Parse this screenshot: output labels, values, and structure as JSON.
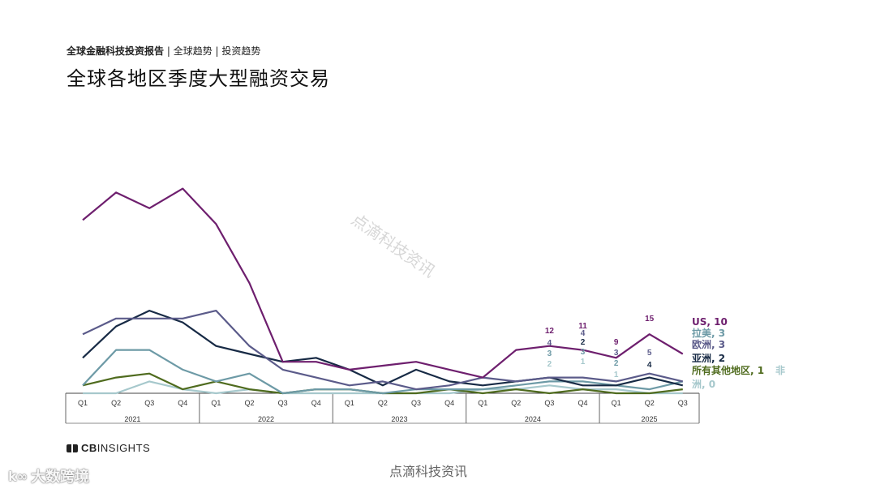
{
  "header": {
    "breadcrumb_bold": "全球金融科技投资报告",
    "breadcrumb_rest": " | 全球趋势 | 投资趋势",
    "title": "全球各地区季度大型融资交易"
  },
  "logo": {
    "brand_bold": "CB",
    "brand_rest": "INSIGHTS"
  },
  "watermarks": {
    "bottom": "点滴科技资讯",
    "diagonal": "点滴科技资讯",
    "corner": "大数跨境",
    "corner_icon": "k∞"
  },
  "chart_data": {
    "type": "line",
    "title": "全球各地区季度大型融资交易",
    "quarter_labels": [
      "Q1",
      "Q2",
      "Q3",
      "Q4",
      "Q1",
      "Q2",
      "Q3",
      "Q4",
      "Q1",
      "Q2",
      "Q3",
      "Q4",
      "Q1",
      "Q2",
      "Q3",
      "Q4",
      "Q1",
      "Q2",
      "Q3"
    ],
    "years": [
      {
        "label": "2021",
        "quarters": 4
      },
      {
        "label": "2022",
        "quarters": 4
      },
      {
        "label": "2023",
        "quarters": 4
      },
      {
        "label": "2024",
        "quarters": 4
      },
      {
        "label": "2025",
        "quarters": 3
      }
    ],
    "ylim": [
      0,
      55
    ],
    "grid": false,
    "series": [
      {
        "name": "US",
        "end_label": "US, 10",
        "color": "#6e1f6e",
        "values": [
          44,
          51,
          47,
          52,
          43,
          28,
          8,
          8,
          6,
          7,
          8,
          6,
          4,
          11,
          12,
          11,
          9,
          15,
          10
        ],
        "labels": {
          "14": "12",
          "15": "11",
          "16": "9",
          "17": "15"
        }
      },
      {
        "name": "欧洲",
        "end_label": "欧洲, 3",
        "color": "#5b5b8a",
        "values": [
          15,
          19,
          19,
          19,
          21,
          12,
          6,
          4,
          2,
          3,
          1,
          2,
          4,
          3,
          4,
          4,
          3,
          5,
          3
        ],
        "labels": {
          "14": "4",
          "15": "4",
          "16": "3",
          "17": "5"
        }
      },
      {
        "name": "亚洲",
        "end_label": "亚洲, 2",
        "color": "#172a45",
        "values": [
          9,
          17,
          21,
          18,
          12,
          10,
          8,
          9,
          6,
          2,
          6,
          3,
          2,
          3,
          4,
          2,
          2,
          4,
          2
        ],
        "labels": {
          "15": "2",
          "17": "4"
        }
      },
      {
        "name": "拉美",
        "end_label": "拉美, 3",
        "color": "#6d9aa6",
        "values": [
          2,
          11,
          11,
          6,
          3,
          5,
          0,
          1,
          1,
          0,
          1,
          1,
          1,
          2,
          3,
          3,
          2,
          1,
          3
        ],
        "labels": {
          "14": "3",
          "15": "3",
          "16": "2"
        }
      },
      {
        "name": "所有其他地区",
        "end_label": "所有其他地区, 1",
        "color": "#4f6b1e",
        "values": [
          2,
          4,
          5,
          1,
          3,
          1,
          0,
          1,
          1,
          0,
          0,
          1,
          0,
          1,
          0,
          1,
          0,
          0,
          1
        ],
        "labels": {}
      },
      {
        "name": "非洲",
        "end_label_a": "非",
        "end_label_b": "洲, 0",
        "color": "#a6c8cc",
        "values": [
          0,
          0,
          3,
          1,
          0,
          1,
          0,
          0,
          0,
          0,
          0,
          0,
          1,
          1,
          2,
          1,
          1,
          0,
          0
        ],
        "labels": {
          "14": "2",
          "15": "1",
          "16": "1"
        }
      }
    ]
  }
}
